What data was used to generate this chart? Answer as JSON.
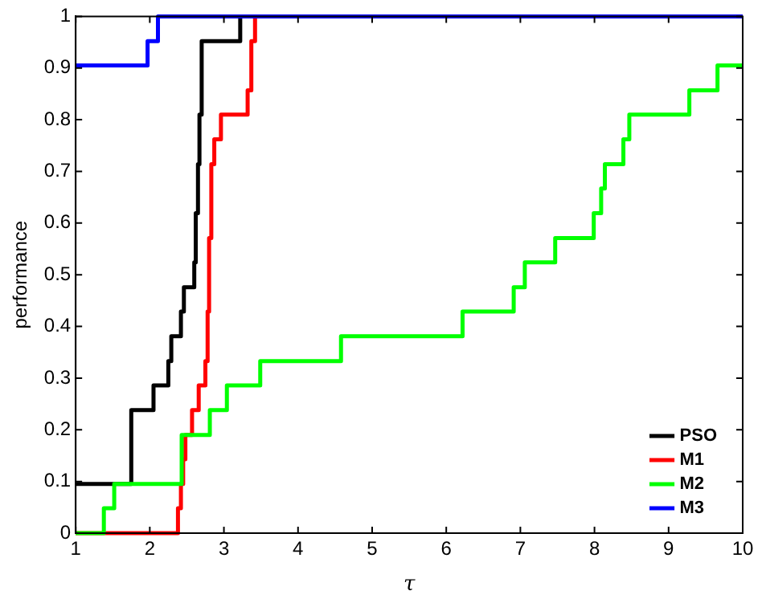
{
  "chart_data": {
    "type": "step",
    "xlabel": "τ",
    "ylabel": "performance",
    "xlim": [
      1,
      10
    ],
    "ylim": [
      0,
      1
    ],
    "xticks": [
      1,
      2,
      3,
      4,
      5,
      6,
      7,
      8,
      9,
      10
    ],
    "yticks": [
      0,
      0.1,
      0.2,
      0.3,
      0.4,
      0.5,
      0.6,
      0.7,
      0.8,
      0.9,
      1
    ],
    "grid": false,
    "legend": "bottom right",
    "marker": "none",
    "line_style": "solid",
    "series": [
      {
        "name": "PSO",
        "color": "#000000",
        "x": [
          1,
          1.75,
          2.05,
          2.25,
          2.29,
          2.42,
          2.46,
          2.6,
          2.62,
          2.65,
          2.67,
          2.7,
          3.22
        ],
        "values": [
          0.095,
          0.238,
          0.286,
          0.333,
          0.381,
          0.429,
          0.476,
          0.524,
          0.619,
          0.714,
          0.81,
          0.952,
          1
        ]
      },
      {
        "name": "M1",
        "color": "#ff0000",
        "x": [
          1,
          2.38,
          2.42,
          2.45,
          2.48,
          2.57,
          2.66,
          2.75,
          2.78,
          2.8,
          2.83,
          2.87,
          2.96,
          3.32,
          3.37,
          3.42
        ],
        "values": [
          0,
          0.048,
          0.095,
          0.143,
          0.19,
          0.238,
          0.286,
          0.333,
          0.429,
          0.571,
          0.714,
          0.762,
          0.81,
          0.857,
          0.952,
          1
        ]
      },
      {
        "name": "M2",
        "color": "#00ff00",
        "x": [
          1,
          1.38,
          1.52,
          2.43,
          2.81,
          3.04,
          3.49,
          4.58,
          6.22,
          6.91,
          7.06,
          7.47,
          7.99,
          8.09,
          8.14,
          8.39,
          8.47,
          9.28,
          9.66,
          10
        ],
        "values": [
          0,
          0.048,
          0.095,
          0.19,
          0.238,
          0.286,
          0.333,
          0.381,
          0.429,
          0.476,
          0.524,
          0.571,
          0.619,
          0.667,
          0.714,
          0.762,
          0.81,
          0.857,
          0.905,
          0.905
        ]
      },
      {
        "name": "M3",
        "color": "#0000ff",
        "x": [
          1,
          1.97,
          2.11,
          10
        ],
        "values": [
          0.905,
          0.952,
          1,
          1
        ]
      }
    ]
  }
}
